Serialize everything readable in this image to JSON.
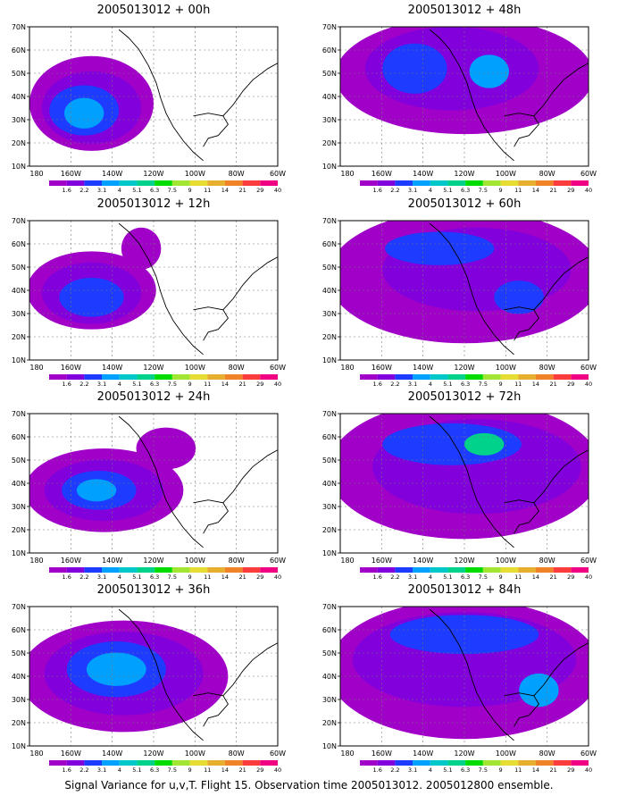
{
  "figure": {
    "caption": "Signal Variance for u,v,T. Flight 15. Observation time 2005013012. 2005012800 ensemble.",
    "x_tick_labels": [
      "180",
      "160W",
      "140W",
      "120W",
      "100W",
      "80W",
      "60W"
    ],
    "y_tick_labels": [
      "70N",
      "60N",
      "50N",
      "40N",
      "30N",
      "20N",
      "10N"
    ],
    "colorbar": {
      "labels": [
        "1.6",
        "2.2",
        "3.1",
        "4",
        "5.1",
        "6.3",
        "7.5",
        "9",
        "11",
        "14",
        "21",
        "29",
        "40"
      ],
      "colors": [
        "#a000c8",
        "#8200dc",
        "#1e3cff",
        "#00a0ff",
        "#00c8c8",
        "#00d28c",
        "#00dc00",
        "#a0e632",
        "#e6dc32",
        "#e6af2d",
        "#f08228",
        "#fa3c3c",
        "#f00082"
      ]
    },
    "panels": [
      {
        "title": "2005013012 + 00h"
      },
      {
        "title": "2005013012 + 48h"
      },
      {
        "title": "2005013012 + 12h"
      },
      {
        "title": "2005013012 + 60h"
      },
      {
        "title": "2005013012 + 24h"
      },
      {
        "title": "2005013012 + 72h"
      },
      {
        "title": "2005013012 + 36h"
      },
      {
        "title": "2005013012 + 84h"
      }
    ]
  }
}
